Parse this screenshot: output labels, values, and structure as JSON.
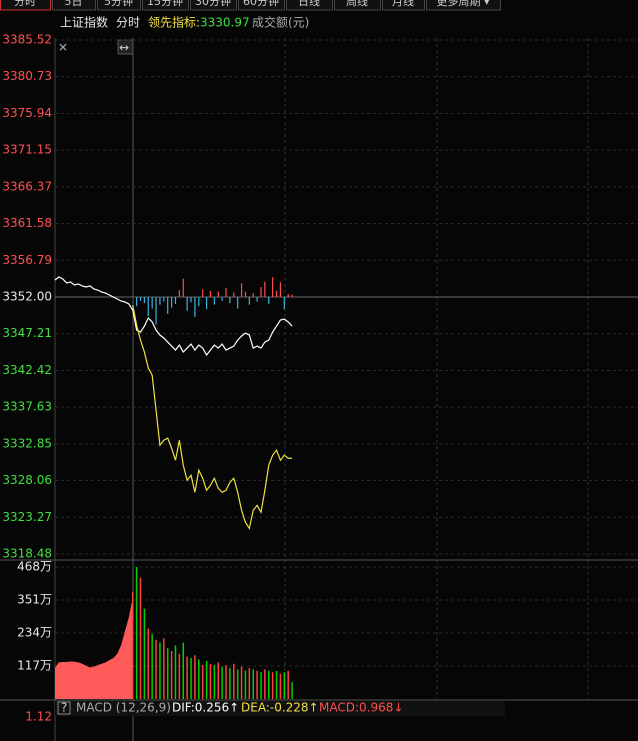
{
  "tabs": [
    "分时",
    "5日",
    "5分钟",
    "15分钟",
    "30分钟",
    "60分钟",
    "日线",
    "周线",
    "月线",
    "更多周期 ▾"
  ],
  "header": {
    "name": "上证指数",
    "mode": "分时",
    "indicator_label": "领先指标:",
    "indicator_value": "3330.97",
    "volume_label": "成交额(元)"
  },
  "chart_data": {
    "type": "line",
    "xlim": [
      0,
      150
    ],
    "ylim": [
      3318.48,
      3385.52
    ],
    "yticks": [
      3385.52,
      3380.73,
      3375.94,
      3371.15,
      3366.37,
      3361.58,
      3356.79,
      {
        "value": 3352,
        "label": "3352.00"
      },
      3347.21,
      3342.42,
      3337.63,
      3332.85,
      3328.06,
      3323.27,
      3318.48
    ],
    "grid": true,
    "series": [
      {
        "color": "#ffffff",
        "values": [
          3354.22,
          3354.61,
          3354.35,
          3353.83,
          3353.96,
          3353.57,
          3353.7,
          3353.44,
          3353.31,
          3353.44,
          3353.05,
          3352.91,
          3352.65,
          3352.52,
          3352.26,
          3352,
          3351.74,
          3351.48,
          3351.35,
          3351.09,
          3350.3,
          3347.69,
          3347.43,
          3348.21,
          3349.26,
          3348.74,
          3347.69,
          3347.04,
          3346.64,
          3346.12,
          3345.6,
          3345.08,
          3345.73,
          3344.82,
          3345.34,
          3345.86,
          3345.08,
          3345.73,
          3345.34,
          3344.43,
          3345.08,
          3345.73,
          3345.34,
          3345.86,
          3345.08,
          3345.34,
          3345.6,
          3346.38,
          3346.9,
          3347.3,
          3347.04,
          3345.34,
          3345.6,
          3345.34,
          3346.12,
          3346.38,
          3347.43,
          3348.21,
          3349,
          3349.13,
          3348.74,
          3348.21
        ]
      },
      {
        "color": "#f0e040",
        "values": [
          null,
          null,
          null,
          null,
          null,
          null,
          null,
          null,
          null,
          null,
          null,
          null,
          null,
          null,
          null,
          null,
          null,
          null,
          null,
          null,
          3350.96,
          3348.34,
          3346.38,
          3344.82,
          3342.73,
          3341.81,
          3337.24,
          3332.67,
          3333.32,
          3333.59,
          3332.28,
          3330.71,
          3333.32,
          3330.06,
          3328.1,
          3328.75,
          3326.53,
          3329.41,
          3328.36,
          3326.79,
          3327.44,
          3328.36,
          3327.05,
          3326.53,
          3326.79,
          3327.83,
          3328.36,
          3326.53,
          3324.18,
          3322.61,
          3321.83,
          3324.18,
          3324.83,
          3323.92,
          3326.79,
          3330.06,
          3331.37,
          3332.02,
          3330.71,
          3331.37,
          3330.97,
          3330.97
        ]
      }
    ],
    "bars": {
      "up_color": "#ff5050",
      "down_color": "#3ab4e0",
      "x": [
        21,
        22,
        23,
        24,
        25,
        26,
        27,
        28,
        29,
        30,
        31,
        32,
        33,
        34,
        35,
        36,
        37,
        38,
        39,
        40,
        41,
        42,
        43,
        44,
        45,
        46,
        47,
        48,
        49,
        50,
        51,
        52,
        53,
        54,
        55,
        56,
        57,
        58,
        59,
        60,
        61
      ],
      "values": [
        -1.2,
        -0.5,
        -0.8,
        -2.5,
        -1.5,
        -3.6,
        -1,
        -0.6,
        -2.2,
        -1.4,
        -0.9,
        0.9,
        2.4,
        -1.8,
        -0.7,
        -2.6,
        -1.2,
        1,
        -1.6,
        0.8,
        -1,
        0.7,
        -0.5,
        1.2,
        -0.8,
        0.6,
        -1.5,
        1.8,
        0.7,
        -1,
        0.5,
        -0.6,
        1.3,
        2,
        -0.9,
        2.6,
        0.8,
        1.9,
        -1.6,
        0.4,
        0.3
      ]
    },
    "volume": {
      "ylim": [
        0,
        468
      ],
      "yticks": [
        {
          "value": 468,
          "label": "468万"
        },
        {
          "value": 351,
          "label": "351万"
        },
        {
          "value": 234,
          "label": "234万"
        },
        {
          "value": 117,
          "label": "117万"
        }
      ],
      "area_color": "#ff5a5a",
      "area": [
        110,
        130,
        131,
        131,
        133,
        132,
        130,
        125,
        118,
        112,
        115,
        120,
        125,
        130,
        138,
        145,
        160,
        190,
        240,
        290,
        360
      ],
      "bar_x": [
        20,
        21,
        22,
        23,
        24,
        25,
        26,
        27,
        28,
        29,
        30,
        31,
        32,
        33,
        34,
        35,
        36,
        37,
        38,
        39,
        40,
        41,
        42,
        43,
        44,
        45,
        46,
        47,
        48,
        49,
        50,
        51,
        52,
        53,
        54,
        55,
        56,
        57,
        58,
        59,
        60,
        61
      ],
      "bars": [
        380,
        468,
        430,
        320,
        250,
        230,
        210,
        200,
        215,
        180,
        170,
        190,
        160,
        200,
        150,
        145,
        155,
        140,
        120,
        135,
        125,
        120,
        130,
        115,
        120,
        110,
        125,
        105,
        115,
        100,
        110,
        105,
        100,
        95,
        105,
        100,
        95,
        100,
        90,
        95,
        100,
        60
      ],
      "bar_colors": [
        "#ff4040",
        "#00d000",
        "#ff4040",
        "#00d000",
        "#ff4040",
        "#00d000",
        "#ff4040",
        "#00d000",
        "#ff4040",
        "#00d000",
        "#ff4040",
        "#00d000",
        "#ff4040",
        "#00d000",
        "#ff4040",
        "#00d000",
        "#ff4040",
        "#00d000",
        "#ff4040",
        "#00d000",
        "#ff4040",
        "#00d000",
        "#ff4040",
        "#00d000",
        "#ff4040",
        "#00d000",
        "#ff4040",
        "#00d000",
        "#ff4040",
        "#00d000",
        "#ff4040",
        "#00d000",
        "#ff4040",
        "#00d000",
        "#ff4040",
        "#00d000",
        "#ff4040",
        "#00d000",
        "#ff4040",
        "#00d000",
        "#ff4040",
        "#00d000"
      ]
    },
    "macd": {
      "help": "?",
      "title": "MACD (12,26,9)",
      "dif": "DIF:0.256↑",
      "dea": "DEA:-0.228↑",
      "macd": "MACD:0.968↓",
      "ytick": "1.12"
    }
  }
}
